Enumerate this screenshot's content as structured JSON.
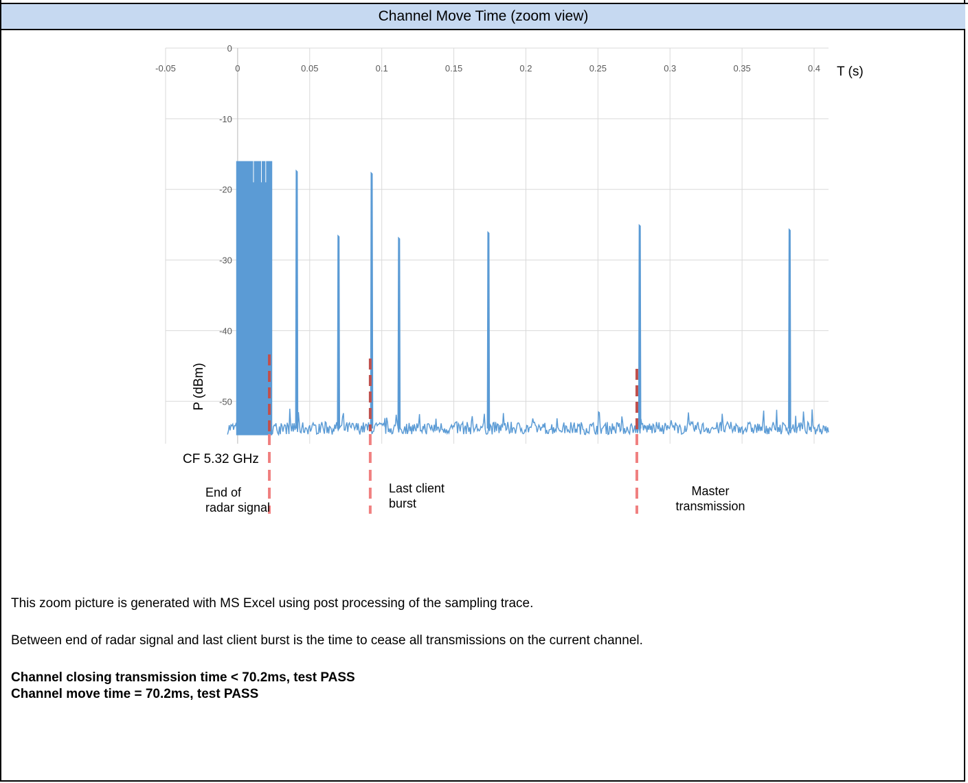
{
  "header": {
    "title": "Channel Move Time (zoom view)"
  },
  "chart_data": {
    "type": "line",
    "xlabel": "T (s)",
    "ylabel": "P (dBm)",
    "xlim": [
      -0.05,
      0.41
    ],
    "ylim": [
      -56,
      0
    ],
    "x_ticks": [
      {
        "value": -0.05,
        "label": "-0.05"
      },
      {
        "value": 0,
        "label": "0"
      },
      {
        "value": 0.05,
        "label": "0.05"
      },
      {
        "value": 0.1,
        "label": "0.1"
      },
      {
        "value": 0.15,
        "label": "0.15"
      },
      {
        "value": 0.2,
        "label": "0.2"
      },
      {
        "value": 0.25,
        "label": "0.25"
      },
      {
        "value": 0.3,
        "label": "0.3"
      },
      {
        "value": 0.35,
        "label": "0.35"
      },
      {
        "value": 0.4,
        "label": "0.4"
      }
    ],
    "y_ticks": [
      {
        "value": 0,
        "label": "0"
      },
      {
        "value": -10,
        "label": "-10"
      },
      {
        "value": -20,
        "label": "-20"
      },
      {
        "value": -30,
        "label": "-30"
      },
      {
        "value": -40,
        "label": "-40"
      },
      {
        "value": -50,
        "label": "-50"
      }
    ],
    "grid": true,
    "series": [
      {
        "noise_floor_dbm": -53.8,
        "radar_block": {
          "start": -0.001,
          "end": 0.024,
          "level_dbm": -16
        },
        "bursts": [
          {
            "x": 0.041,
            "y": -17.3
          },
          {
            "x": 0.07,
            "y": -26.5
          },
          {
            "x": 0.093,
            "y": -17.6
          },
          {
            "x": 0.112,
            "y": -26.8
          },
          {
            "x": 0.174,
            "y": -26
          },
          {
            "x": 0.279,
            "y": -25
          },
          {
            "x": 0.383,
            "y": -25.6
          }
        ]
      }
    ],
    "markers": [
      {
        "x": 0.022,
        "label_lines": [
          "End of",
          "radar signal"
        ]
      },
      {
        "x": 0.092,
        "label_lines": [
          "Last client",
          "burst"
        ]
      },
      {
        "x": 0.277,
        "label_lines": [
          "Master",
          "transmission"
        ]
      }
    ],
    "annotation": "CF 5.32 GHz",
    "colors": {
      "series": "#5b9bd5",
      "marker": "#f08080",
      "marker_dark": "#c0504d",
      "grid": "#d9d9d9"
    }
  },
  "notes": {
    "line1": "This zoom picture is generated with MS Excel using post processing of the sampling trace.",
    "line2": "Between end of radar signal and last client burst is the time to cease all transmissions on the current channel.",
    "result1": "Channel closing transmission time < 70.2ms, test PASS",
    "result2": "Channel move time = 70.2ms, test PASS"
  }
}
